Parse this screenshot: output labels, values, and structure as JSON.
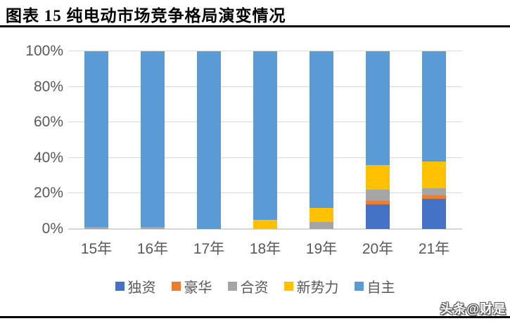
{
  "figure": {
    "title": "图表 15  纯电动市场竞争格局演变情况",
    "watermark": "头条@财是"
  },
  "chart_data": {
    "type": "bar",
    "stacked": true,
    "title": "图表 15  纯电动市场竞争格局演变情况",
    "categories": [
      "15年",
      "16年",
      "17年",
      "18年",
      "19年",
      "20年",
      "21年"
    ],
    "series": [
      {
        "name": "独资",
        "color": "#4472C4",
        "values": [
          0,
          0,
          0,
          0,
          0,
          14,
          17
        ]
      },
      {
        "name": "豪华",
        "color": "#ED7D31",
        "values": [
          0,
          0,
          0,
          0,
          0,
          2,
          2
        ]
      },
      {
        "name": "合资",
        "color": "#A5A5A5",
        "values": [
          1,
          1,
          0,
          0,
          4,
          6,
          4
        ]
      },
      {
        "name": "新势力",
        "color": "#FFC000",
        "values": [
          0,
          0,
          0,
          5,
          8,
          14,
          15
        ]
      },
      {
        "name": "自主",
        "color": "#5B9BD5",
        "values": [
          99,
          99,
          100,
          95,
          88,
          64,
          62
        ]
      }
    ],
    "xlabel": "",
    "ylabel": "",
    "ylim": [
      0,
      100
    ],
    "yticks": [
      "0%",
      "20%",
      "40%",
      "60%",
      "80%",
      "100%"
    ],
    "grid": true,
    "legend_position": "bottom",
    "colors": {
      "gridline": "#D9D9D9",
      "axis_line": "#D6D6D6",
      "tick_text": "#595959",
      "title_text": "#000000"
    }
  }
}
